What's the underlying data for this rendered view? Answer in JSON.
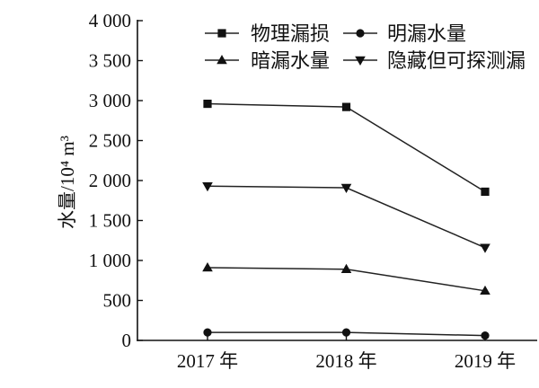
{
  "chart_data": {
    "type": "line",
    "title": "",
    "xlabel": "",
    "ylabel": "水量/10⁴ m³",
    "categories": [
      "2017 年",
      "2018 年",
      "2019 年"
    ],
    "series": [
      {
        "name": "物理漏损",
        "marker": "square",
        "color": "#222222",
        "values": [
          2960,
          2920,
          1860
        ]
      },
      {
        "name": "明漏水量",
        "marker": "circle",
        "color": "#222222",
        "values": [
          100,
          100,
          60
        ]
      },
      {
        "name": "暗漏水量",
        "marker": "triangle-up",
        "color": "#222222",
        "values": [
          910,
          890,
          620
        ]
      },
      {
        "name": "隐藏但可探测漏",
        "marker": "triangle-down",
        "color": "#222222",
        "values": [
          1930,
          1910,
          1160
        ]
      }
    ],
    "ylim": [
      0,
      4000
    ],
    "yticks": [
      0,
      500,
      1000,
      1500,
      2000,
      2500,
      3000,
      3500,
      4000
    ],
    "ytick_labels": [
      "0",
      "500",
      "1 000",
      "1 500",
      "2 000",
      "2 500",
      "3 000",
      "3 500",
      "4 000"
    ],
    "grid": false,
    "legend": "top"
  }
}
